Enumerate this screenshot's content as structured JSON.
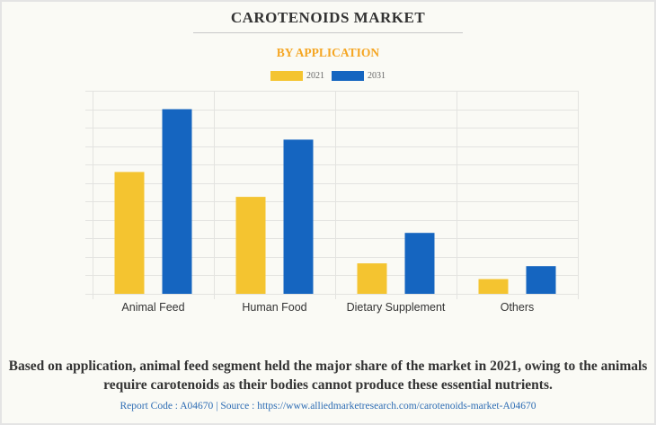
{
  "title": "CAROTENOIDS MARKET",
  "subtitle": "BY APPLICATION",
  "colors": {
    "2021": "#f4c430",
    "2031": "#1565c0",
    "accent": "#f5a623",
    "link": "#2e6db4"
  },
  "chart_data": {
    "type": "bar",
    "title": "CAROTENOIDS MARKET",
    "subtitle": "BY APPLICATION",
    "xlabel": "",
    "ylabel": "",
    "categories": [
      "Animal Feed",
      "Human Food",
      "Dietary Supplement",
      "Others"
    ],
    "series": [
      {
        "name": "2021",
        "color": "#f4c430",
        "values": [
          6.6,
          5.25,
          1.65,
          0.8
        ]
      },
      {
        "name": "2031",
        "color": "#1565c0",
        "values": [
          10.0,
          8.35,
          3.3,
          1.5
        ]
      }
    ],
    "ylim": [
      0,
      11
    ],
    "y_grid_lines": 11,
    "grid": true,
    "legend_position": "top-center",
    "y_units": "relative (no axis labels shown)"
  },
  "caption": "Based on application, animal feed segment held the major share of the market in 2021, owing to the animals require carotenoids as their bodies cannot produce these essential nutrients.",
  "source": "Report Code : A04670  |  Source : https://www.alliedmarketresearch.com/carotenoids-market-A04670"
}
